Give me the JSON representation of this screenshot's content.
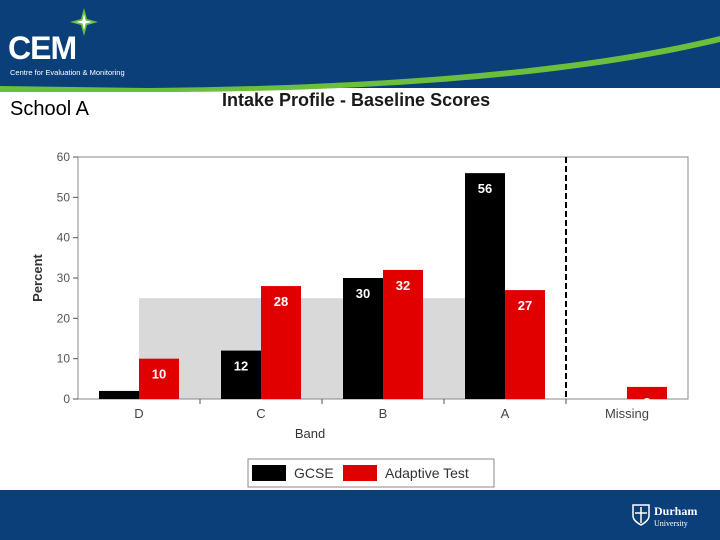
{
  "header": {
    "logo_text": "CEM",
    "logo_subtitle": "Centre for Evaluation & Monitoring"
  },
  "school_label": "School A",
  "footer": {
    "university_name": "Durham",
    "university_sub": "University"
  },
  "colors": {
    "header_blue": "#0b3f7a",
    "gcse": "#000000",
    "adaptive": "#e00000",
    "band_shade": "#d9d9d9"
  },
  "chart_data": {
    "type": "bar",
    "title": "Intake Profile - Baseline Scores",
    "xlabel": "Band",
    "ylabel": "Percent",
    "categories": [
      "D",
      "C",
      "B",
      "A",
      "Missing"
    ],
    "series": [
      {
        "name": "GCSE",
        "values": [
          2,
          12,
          30,
          56,
          0
        ],
        "labels": [
          "",
          "12",
          "30",
          "56",
          ""
        ]
      },
      {
        "name": "Adaptive Test",
        "values": [
          10,
          28,
          32,
          27,
          3
        ],
        "labels": [
          "10",
          "28",
          "32",
          "27",
          "3"
        ]
      }
    ],
    "reference_band_value": 25,
    "ylim": [
      0,
      60
    ],
    "yticks": [
      0,
      10,
      20,
      30,
      40,
      50,
      60
    ],
    "grid": false,
    "legend": "bottom"
  }
}
